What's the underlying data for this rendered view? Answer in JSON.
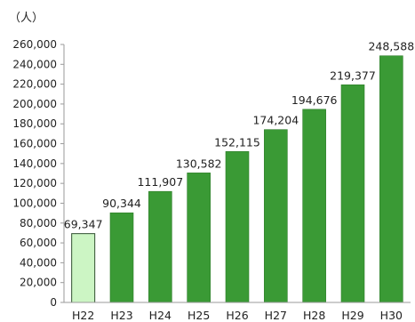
{
  "chart_data": {
    "type": "bar",
    "unit_label": "（人）",
    "categories": [
      "H22",
      "H23",
      "H24",
      "H25",
      "H26",
      "H27",
      "H28",
      "H29",
      "H30"
    ],
    "values": [
      69347,
      90344,
      111907,
      130582,
      152115,
      174204,
      194676,
      219377,
      248588
    ],
    "data_labels": [
      "69,347",
      "90,344",
      "111,907",
      "130,582",
      "152,115",
      "174,204",
      "194,676",
      "219,377",
      "248,588"
    ],
    "ylim": [
      0,
      260000
    ],
    "yticks": [
      0,
      20000,
      40000,
      60000,
      80000,
      100000,
      120000,
      140000,
      160000,
      180000,
      200000,
      220000,
      240000,
      260000
    ],
    "ytick_labels": [
      "0",
      "20,000",
      "40,000",
      "60,000",
      "80,000",
      "100,000",
      "120,000",
      "140,000",
      "160,000",
      "180,000",
      "200,000",
      "220,000",
      "240,000",
      "260,000"
    ],
    "grid": false,
    "legend": "none",
    "colors": {
      "bar": "#3a9a35",
      "bar_edge": "#2e7d2a",
      "highlight_bar": "#ccf5c4",
      "highlight_edge": "#2f4f2f"
    },
    "highlight_index": 0
  }
}
